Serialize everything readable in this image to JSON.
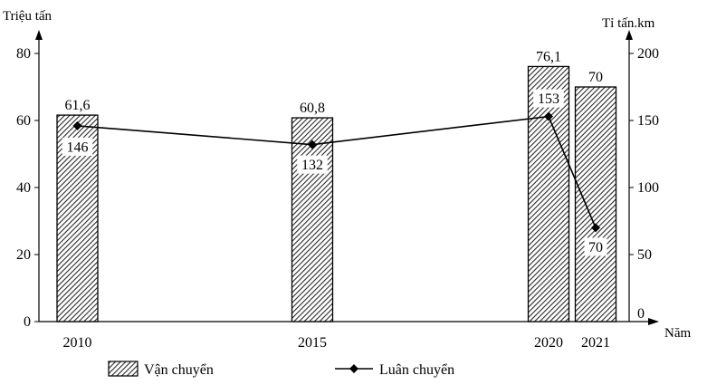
{
  "chart_data": {
    "type": "bar",
    "categories": [
      "2010",
      "2015",
      "2020",
      "2021"
    ],
    "x_positions": [
      2010,
      2015,
      2020,
      2021
    ],
    "xlabel": "Năm",
    "y_left": {
      "label": "Triệu tấn",
      "lim": [
        0,
        80
      ],
      "ticks": [
        0,
        20,
        40,
        60,
        80
      ]
    },
    "y_right": {
      "label": "Tỉ tấn.km",
      "lim": [
        0,
        200
      ],
      "ticks": [
        0,
        50,
        100,
        150,
        200
      ]
    },
    "series": [
      {
        "name": "Vận chuyển",
        "kind": "bar",
        "axis": "left",
        "values": [
          61.6,
          60.8,
          76.1,
          70
        ],
        "labels": [
          "61,6",
          "60,8",
          "76,1",
          "70"
        ]
      },
      {
        "name": "Luân chuyển",
        "kind": "line",
        "axis": "right",
        "values": [
          146,
          132,
          153,
          70
        ],
        "labels": [
          "146",
          "132",
          "153",
          "70"
        ]
      }
    ],
    "legend": "bottom"
  }
}
